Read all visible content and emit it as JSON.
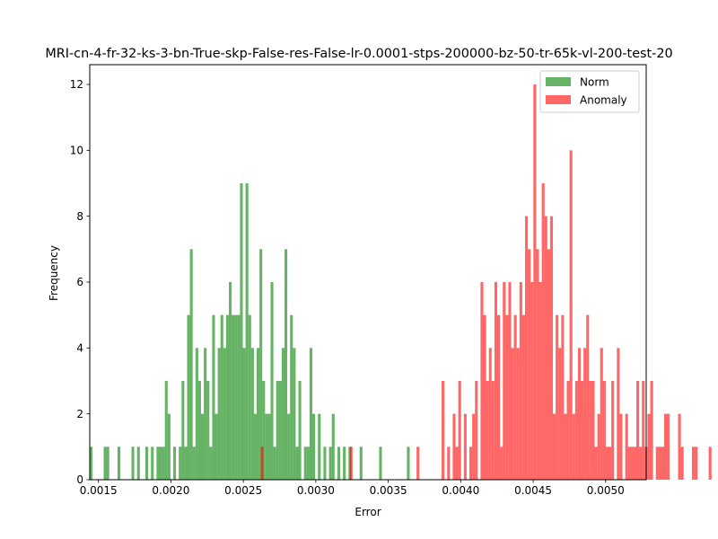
{
  "chart_data": {
    "type": "histogram",
    "title": "MRI-cn-4-fr-32-ks-3-bn-True-skp-False-res-False-lr-0.0001-stps-200000-bz-50-tr-65k-vl-200-test-20",
    "xlabel": "Error",
    "ylabel": "Frequency",
    "xlim": [
      0.00144,
      0.00528
    ],
    "ylim": [
      0,
      12.6
    ],
    "bin_width": 1.92e-05,
    "x_ticks": [
      0.0015,
      0.002,
      0.0025,
      0.003,
      0.0035,
      0.004,
      0.0045,
      0.005
    ],
    "x_tick_labels": [
      "0.0015",
      "0.0020",
      "0.0025",
      "0.0030",
      "0.0035",
      "0.0040",
      "0.0045",
      "0.0050"
    ],
    "y_ticks": [
      0,
      2,
      4,
      6,
      8,
      10,
      12
    ],
    "y_tick_labels": [
      "0",
      "2",
      "4",
      "6",
      "8",
      "10",
      "12"
    ],
    "legend": {
      "placement": "top-right"
    },
    "series": [
      {
        "name": "Norm",
        "color": "#008000",
        "alpha": 0.6,
        "x_start": 0.00144,
        "values": [
          1,
          0,
          0,
          0,
          0,
          1,
          1,
          0,
          0,
          0,
          1,
          0,
          0,
          0,
          0,
          1,
          0,
          1,
          0,
          0,
          1,
          0,
          1,
          0,
          1,
          1,
          1,
          3,
          2,
          0,
          1,
          0,
          1,
          3,
          1,
          5,
          7,
          1,
          4,
          3,
          2,
          4,
          3,
          1,
          5,
          2,
          4,
          5,
          4,
          5,
          6,
          5,
          5,
          5,
          9,
          4,
          9,
          5,
          4,
          2,
          4,
          7,
          3,
          2,
          2,
          6,
          1,
          3,
          3,
          4,
          7,
          2,
          5,
          4,
          1,
          3,
          0,
          1,
          1,
          4,
          2,
          0,
          2,
          0,
          1,
          0,
          1,
          2,
          0,
          1,
          0,
          1,
          0,
          1,
          0,
          0,
          0,
          1,
          0,
          0,
          0,
          0,
          0,
          0,
          1,
          0,
          0,
          0,
          0,
          0,
          0,
          0,
          0,
          0,
          1,
          0
        ]
      },
      {
        "name": "Anomaly",
        "color": "#ff0000",
        "alpha": 0.6,
        "x_start": 0.00262,
        "values": [
          1,
          0,
          0,
          0,
          0,
          0,
          0,
          0,
          0,
          0,
          0,
          0,
          0,
          0,
          0,
          0,
          0,
          0,
          0,
          0,
          0,
          0,
          0,
          0,
          0,
          0,
          0,
          0,
          0,
          0,
          0,
          0,
          1,
          0,
          0,
          0,
          0,
          0,
          0,
          0,
          0,
          0,
          0,
          0,
          0,
          0,
          0,
          0,
          0,
          0,
          0,
          0,
          0,
          0,
          0,
          0,
          1,
          0,
          0,
          0,
          0,
          0,
          0,
          0,
          0,
          3,
          0,
          1,
          0,
          2,
          1,
          3,
          0,
          2,
          0,
          1,
          2,
          3,
          0,
          6,
          5,
          3,
          4,
          3,
          6,
          5,
          1,
          6,
          5,
          6,
          4,
          5,
          4,
          6,
          5,
          8,
          7,
          6,
          12,
          7,
          6,
          9,
          8,
          7,
          8,
          2,
          5,
          4,
          5,
          2,
          3,
          10,
          2,
          3,
          4,
          3,
          4,
          5,
          3,
          3,
          1,
          2,
          4,
          3,
          1,
          1,
          3,
          0,
          4,
          2,
          0,
          2,
          1,
          1,
          1,
          3,
          1,
          3,
          1,
          2,
          3,
          0,
          1,
          1,
          1,
          2,
          2,
          0,
          0,
          0,
          2,
          1,
          0,
          0,
          0,
          1,
          1,
          0,
          0,
          0,
          0,
          1
        ]
      }
    ]
  }
}
